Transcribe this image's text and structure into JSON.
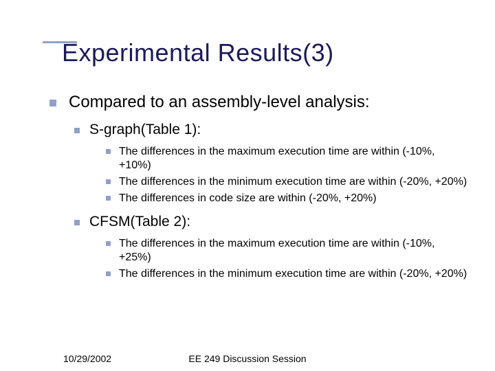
{
  "accent_color": "#90a0c8",
  "title_color": "#1a1a5a",
  "title": "Experimental Results(3)",
  "level1": "Compared to an assembly-level analysis:",
  "sgraph": {
    "heading": "S-graph(Table 1):",
    "items": [
      "The differences in the maximum execution time are within (-10%, +10%)",
      "The differences in the minimum execution time are within (-20%, +20%)",
      "The differences in code size are within (-20%, +20%)"
    ]
  },
  "cfsm": {
    "heading": "CFSM(Table 2):",
    "items": [
      "The differences in the maximum execution time are within (-10%, +25%)",
      "The differences in the minimum execution time are within (-20%, +20%)"
    ]
  },
  "footer": {
    "date": "10/29/2002",
    "session": "EE 249  Discussion Session"
  }
}
